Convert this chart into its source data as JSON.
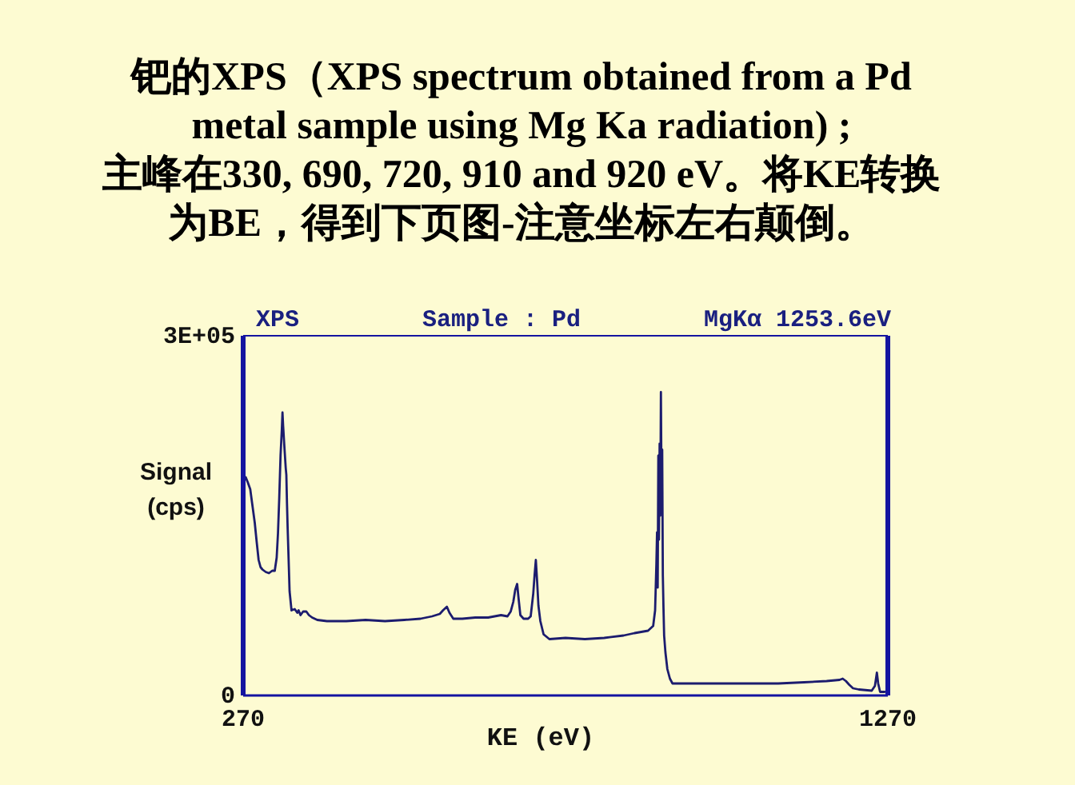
{
  "chart_data": {
    "type": "line",
    "title": "钯的XPS（XPS spectrum obtained from a Pd metal sample using Mg Ka radiation) ;",
    "subtitle": "主峰在330, 690, 720, 910 and 920 eV。将KE转换为BE，得到下页图-注意坐标左右颠倒。",
    "annotations": [
      "XPS",
      "Sample : Pd",
      "MgKα 1253.6eV"
    ],
    "xlabel": "KE (eV)",
    "ylabel": "Signal (cps)",
    "xlim": [
      270,
      1270
    ],
    "ylim": [
      0,
      300000
    ],
    "xticks": [
      270,
      1270
    ],
    "yticks": [
      {
        "value": 0,
        "label": "0"
      },
      {
        "value": 300000,
        "label": "3E+05"
      }
    ],
    "color": "#1c1c6e",
    "x": [
      271,
      274,
      277,
      281,
      284,
      288,
      291,
      294,
      297,
      300,
      305,
      310,
      315,
      319,
      322,
      324,
      326,
      328,
      330,
      331,
      332,
      334,
      336,
      337,
      338,
      339,
      341,
      342,
      345,
      350,
      354,
      356,
      359,
      363,
      368,
      372,
      377,
      385,
      400,
      430,
      460,
      490,
      520,
      545,
      563,
      575,
      580,
      586,
      590,
      596,
      610,
      630,
      650,
      670,
      680,
      685,
      689,
      692,
      695,
      697,
      700,
      705,
      712,
      716,
      720,
      722,
      724,
      726,
      728,
      731,
      736,
      745,
      770,
      800,
      830,
      860,
      877,
      898,
      906,
      909,
      911,
      912,
      913,
      914,
      915,
      916,
      917,
      918,
      919,
      920,
      921,
      922,
      923,
      925,
      928,
      932,
      936,
      960,
      1000,
      1050,
      1100,
      1140,
      1175,
      1195,
      1200,
      1205,
      1210,
      1216,
      1225,
      1245,
      1250,
      1253,
      1255,
      1258,
      1265
    ],
    "values": [
      178000,
      182000,
      178000,
      172000,
      160000,
      144000,
      128000,
      113000,
      107000,
      105000,
      103000,
      102000,
      104000,
      104000,
      115000,
      135000,
      165000,
      200000,
      222000,
      236000,
      225000,
      207000,
      190000,
      184000,
      160000,
      140000,
      105000,
      87000,
      71000,
      72000,
      69000,
      71000,
      67000,
      70000,
      70000,
      67000,
      65000,
      63000,
      62000,
      62000,
      63000,
      62000,
      63000,
      64000,
      66000,
      68000,
      71000,
      74000,
      69000,
      64000,
      64000,
      65000,
      65000,
      67000,
      66000,
      70000,
      78000,
      88000,
      93000,
      82000,
      67000,
      64000,
      64000,
      66000,
      85000,
      100000,
      113000,
      95000,
      75000,
      62000,
      51000,
      47000,
      48000,
      47000,
      48000,
      50000,
      52000,
      54000,
      58000,
      71000,
      110000,
      136000,
      90000,
      200000,
      130000,
      210000,
      150000,
      253000,
      165000,
      205000,
      100000,
      73000,
      50000,
      36000,
      22000,
      14000,
      10000,
      10000,
      10000,
      10000,
      10000,
      11000,
      12000,
      13000,
      14000,
      12000,
      9000,
      6000,
      5000,
      4000,
      8000,
      19000,
      10000,
      3000,
      3000
    ]
  }
}
